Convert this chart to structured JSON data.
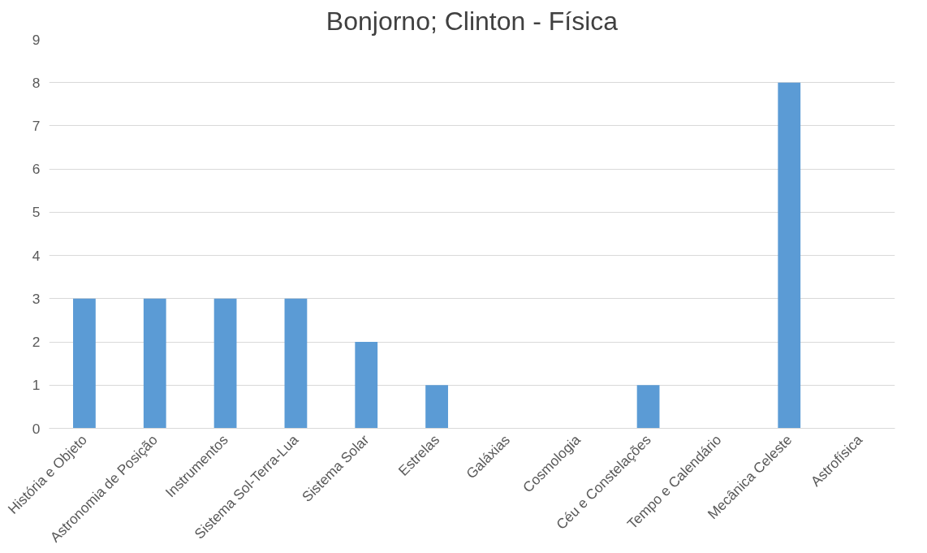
{
  "chart_data": {
    "type": "bar",
    "title": "Bonjorno; Clinton - Física",
    "categories": [
      "História e Objeto",
      "Astronomia de Posição",
      "Instrumentos",
      "Sistema Sol-Terra-Lua",
      "Sistema Solar",
      "Estrelas",
      "Galáxias",
      "Cosmologia",
      "Céu e Constelações",
      "Tempo e Calendário",
      "Mecânica Celeste",
      "Astrofísica"
    ],
    "values": [
      3,
      3,
      3,
      3,
      2,
      1,
      0,
      0,
      1,
      0,
      8,
      0
    ],
    "color": "#5b9bd5",
    "ylim": [
      0,
      9
    ],
    "yticks": [
      0,
      1,
      2,
      3,
      4,
      5,
      6,
      7,
      8,
      9
    ],
    "grid": "y"
  }
}
